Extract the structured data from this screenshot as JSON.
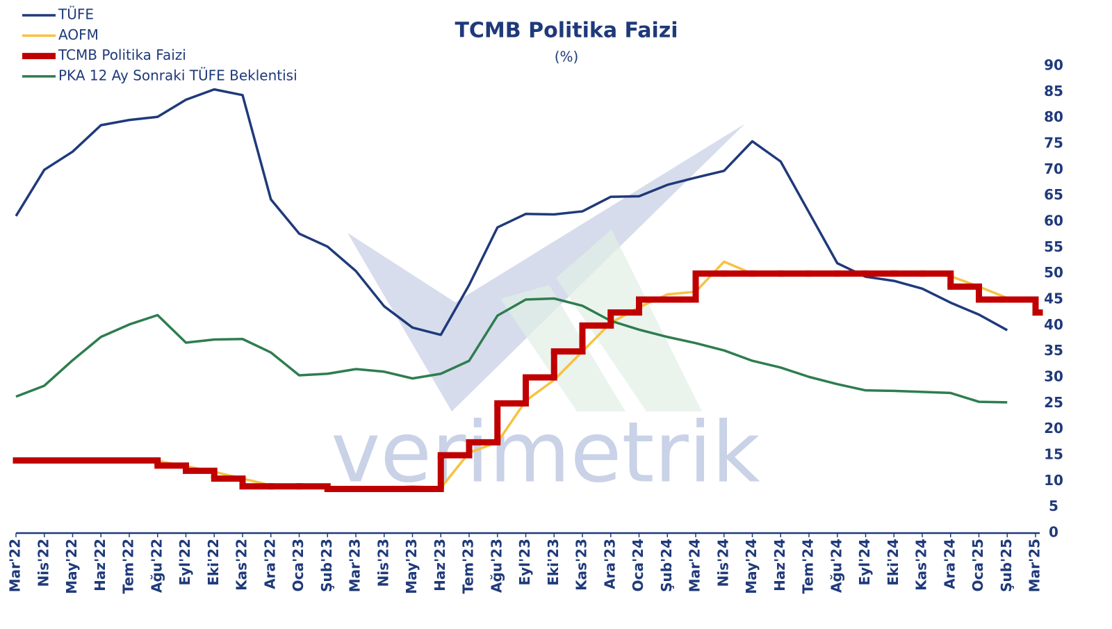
{
  "chart_data": {
    "type": "line",
    "title": "TCMB Politika Faizi",
    "subtitle": "(%)",
    "watermark": "verimetrik",
    "categories": [
      "Mar'22",
      "Nis'22",
      "May'22",
      "Haz'22",
      "Tem'22",
      "Ağu'22",
      "Eyl'22",
      "Eki'22",
      "Kas'22",
      "Ara'22",
      "Oca'23",
      "Şub'23",
      "Mar'23",
      "Nis'23",
      "May'23",
      "Haz'23",
      "Tem'23",
      "Ağu'23",
      "Eyl'23",
      "Eki'23",
      "Kas'23",
      "Ara'23",
      "Oca'24",
      "Şub'24",
      "Mar'24",
      "Nis'24",
      "May'24",
      "Haz'24",
      "Tem'24",
      "Ağu'24",
      "Eyl'24",
      "Eki'24",
      "Kas'24",
      "Ara'24",
      "Oca'25",
      "Şub'25",
      "Mar'25"
    ],
    "series": [
      {
        "name": "TÜFE",
        "color": "#1f3a7a",
        "values": [
          61.1,
          70.0,
          73.5,
          78.6,
          79.6,
          80.2,
          83.5,
          85.5,
          84.4,
          64.3,
          57.7,
          55.2,
          50.5,
          43.7,
          39.6,
          38.2,
          47.8,
          58.9,
          61.5,
          61.4,
          62.0,
          64.8,
          64.9,
          67.1,
          68.5,
          69.8,
          75.5,
          71.6,
          61.8,
          52.0,
          49.4,
          48.6,
          47.1,
          44.4,
          42.1,
          39.1,
          null
        ]
      },
      {
        "name": "AOFM",
        "color": "#f5c242",
        "values": [
          14,
          14,
          14,
          14,
          14,
          13.9,
          12.9,
          11.8,
          10.5,
          9.2,
          8.8,
          8.6,
          8.5,
          8.6,
          9.0,
          8.7,
          15.5,
          17.5,
          25.5,
          29.5,
          35,
          40.5,
          43.5,
          46,
          46.5,
          52.3,
          50,
          50,
          50,
          50,
          50,
          50,
          50,
          49.5,
          47.5,
          45.3,
          45
        ]
      },
      {
        "name": "TCMB Politika Faizi",
        "color": "#c00000",
        "style": "step",
        "values": [
          14,
          14,
          14,
          14,
          14,
          13,
          12,
          10.5,
          9,
          9,
          9,
          8.5,
          8.5,
          8.5,
          8.5,
          15,
          17.5,
          25,
          30,
          35,
          40,
          42.5,
          45,
          45,
          50,
          50,
          50,
          50,
          50,
          50,
          50,
          50,
          50,
          47.5,
          45,
          45,
          42.5
        ]
      },
      {
        "name": "PKA 12 Ay Sonraki TÜFE Beklentisi",
        "color": "#2e7d4f",
        "values": [
          26.3,
          28.4,
          33.3,
          37.8,
          40.2,
          42.0,
          36.7,
          37.3,
          37.4,
          34.8,
          30.4,
          30.7,
          31.6,
          31.1,
          29.8,
          30.7,
          33.2,
          41.9,
          45.0,
          45.2,
          43.8,
          40.9,
          39.2,
          37.8,
          36.6,
          35.2,
          33.2,
          31.9,
          30.1,
          28.7,
          27.5,
          27.4,
          27.2,
          27.0,
          25.3,
          25.2,
          null
        ]
      }
    ],
    "ylim": [
      0,
      90
    ],
    "yticks": [
      0,
      5,
      10,
      15,
      20,
      25,
      30,
      35,
      40,
      45,
      50,
      55,
      60,
      65,
      70,
      75,
      80,
      85,
      90
    ],
    "grid": false,
    "legend": "top-left"
  }
}
